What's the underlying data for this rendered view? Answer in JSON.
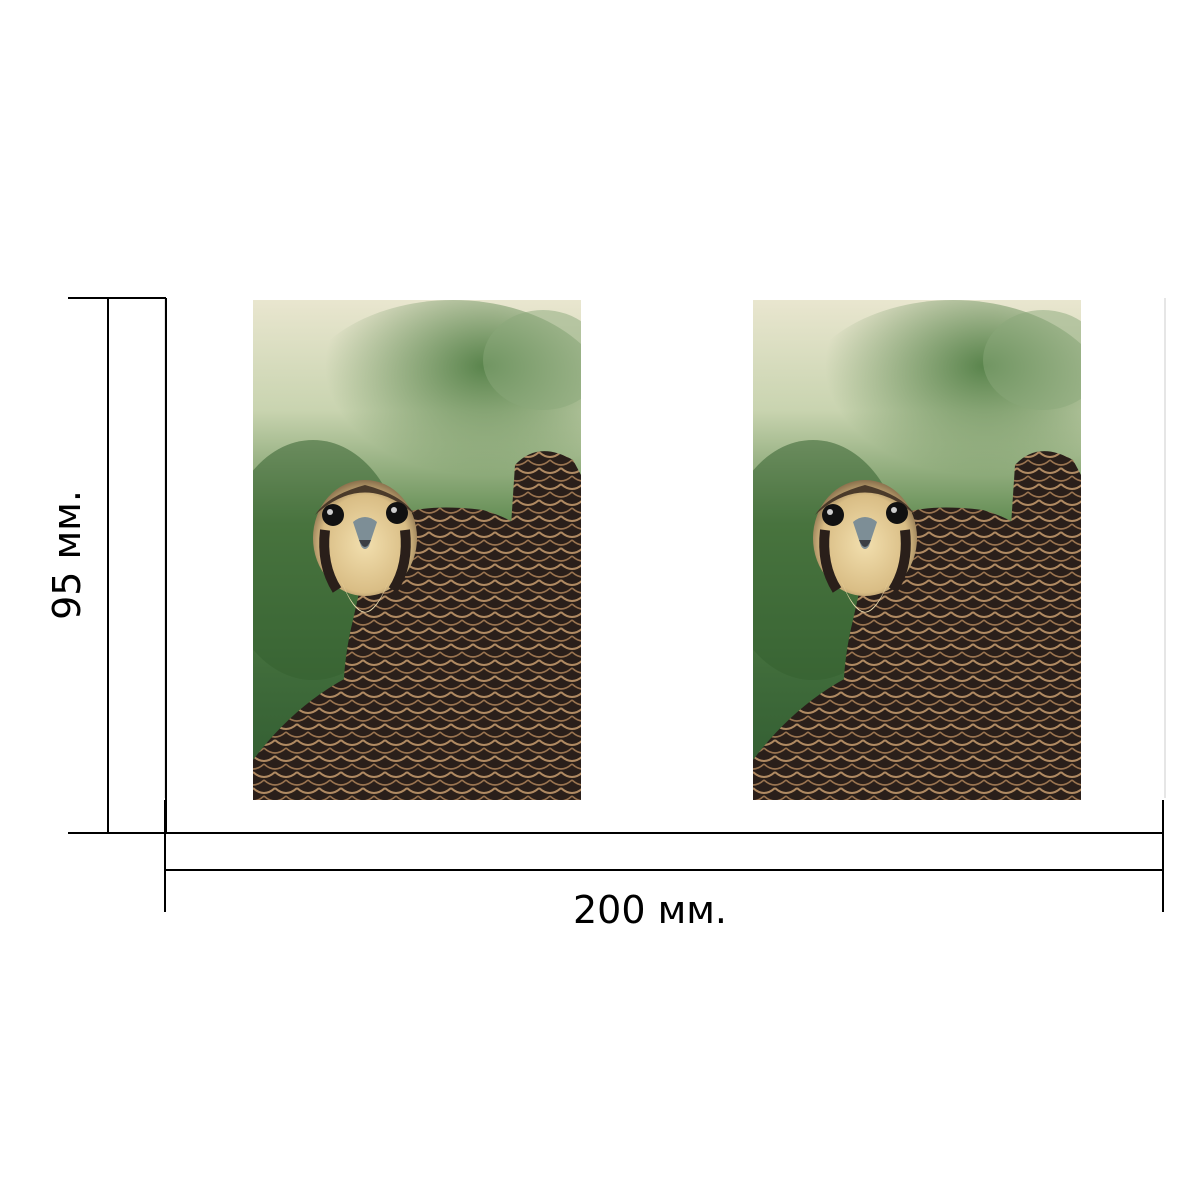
{
  "dimensions": {
    "width_label": "200 мм.",
    "height_label": "95 мм."
  },
  "photos": [
    {
      "subject": "peregrine-falcon"
    },
    {
      "subject": "peregrine-falcon"
    }
  ],
  "colors": {
    "line": "#000000",
    "sky": "#e9e6cf",
    "foliage": "#3f6b3a",
    "plumage_dark": "#2a1f1a",
    "plumage_edge": "#b08a62",
    "face_cream": "#e8d3a0"
  }
}
